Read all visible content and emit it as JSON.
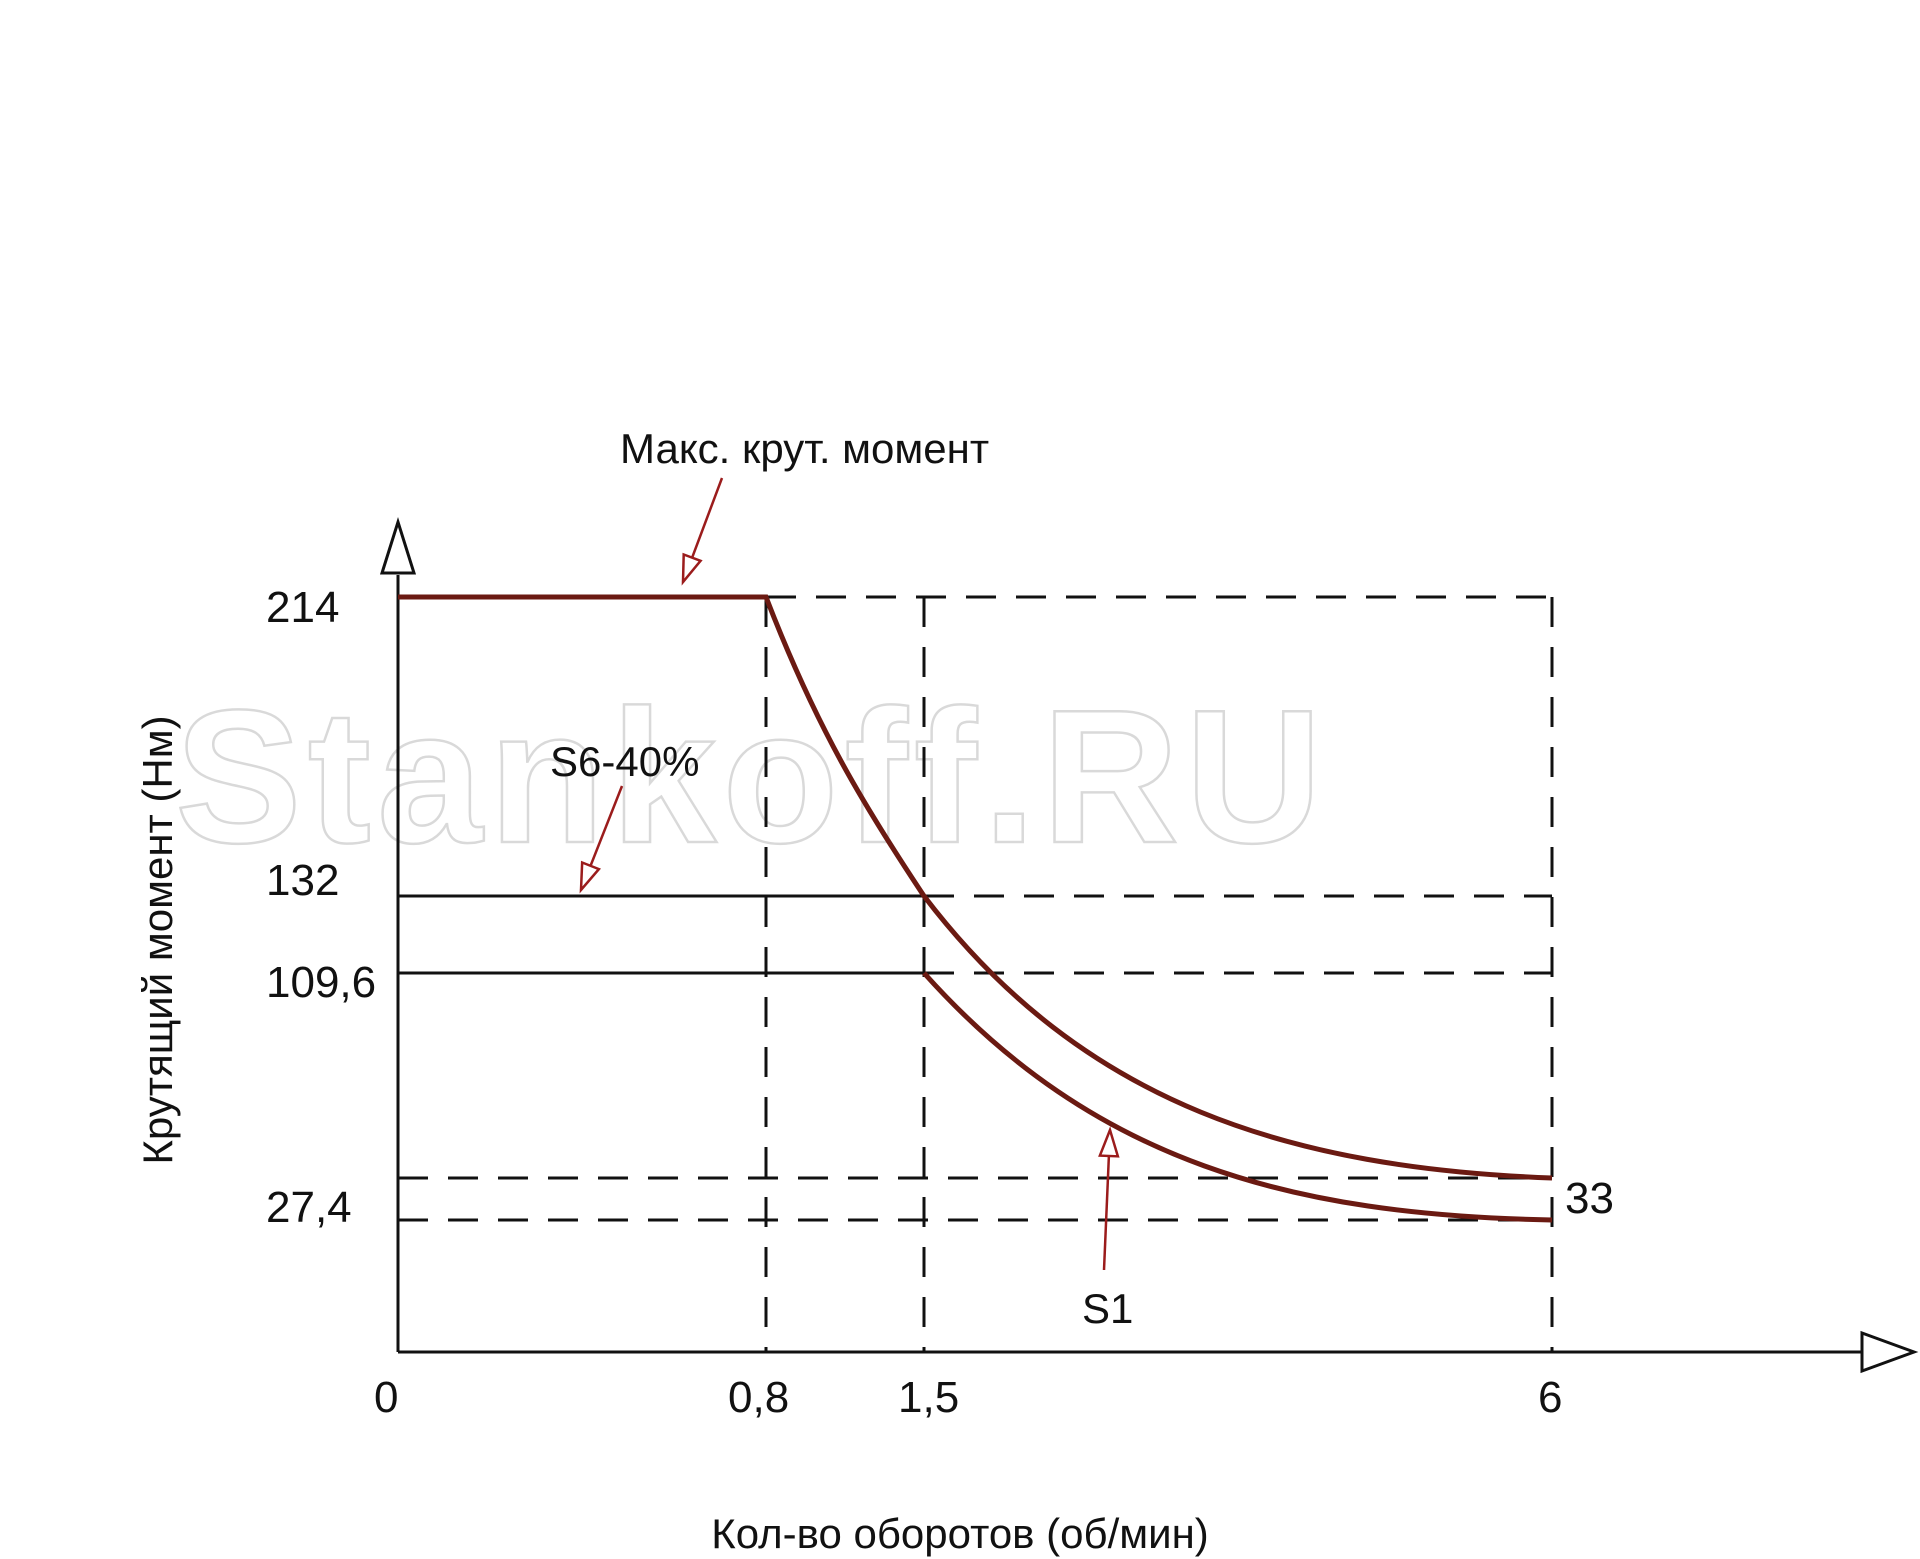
{
  "watermark": "Stankoff.RU",
  "colors": {
    "curve": "#6b1a12",
    "pointer": "#9b1c1c",
    "axis": "#111111",
    "text": "#111111"
  },
  "chart_data": {
    "type": "line",
    "xlabel": "Кол-во оборотов (об/мин)",
    "ylabel": "Крутящий момент (Нм)",
    "x_ticks": [
      "0",
      "0,8",
      "1,5",
      "6"
    ],
    "y_ticks": [
      "214",
      "132",
      "109,6",
      "27,4"
    ],
    "end_label": "33",
    "series": [
      {
        "name": "Макс. крут. момент",
        "points": [
          [
            0,
            214
          ],
          [
            0.8,
            214
          ],
          [
            1.5,
            132
          ],
          [
            6,
            33
          ]
        ]
      },
      {
        "name": "S6-40%",
        "points": [
          [
            0,
            132
          ],
          [
            1.5,
            132
          ],
          [
            6,
            33
          ]
        ]
      },
      {
        "name": "S1",
        "points": [
          [
            0,
            109.6
          ],
          [
            1.5,
            109.6
          ],
          [
            6,
            27.4
          ]
        ]
      }
    ],
    "grid": "dashed reference lines"
  }
}
